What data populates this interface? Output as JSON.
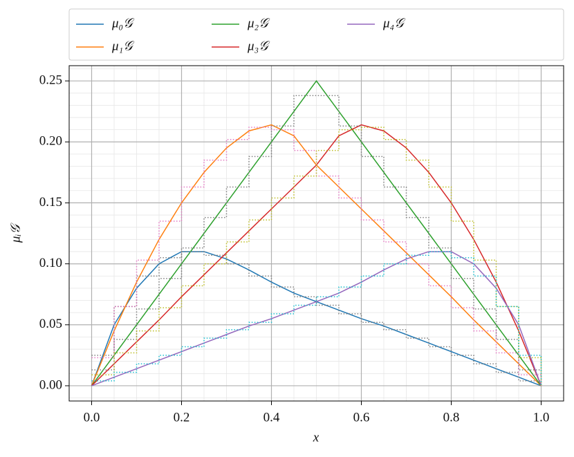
{
  "chart_data": {
    "type": "line",
    "xlabel": "x",
    "ylabel": "μᵢ𝒢",
    "x": [
      0,
      0.05,
      0.1,
      0.15,
      0.2,
      0.25,
      0.3,
      0.35,
      0.4,
      0.45,
      0.5,
      0.55,
      0.6,
      0.65,
      0.7,
      0.75,
      0.8,
      0.85,
      0.9,
      0.95,
      1
    ],
    "series": [
      {
        "name": "μ₀𝒢",
        "color": "#1f77b4",
        "style": "solid",
        "values": [
          0,
          0.05,
          0.08,
          0.1,
          0.11,
          0.11,
          0.104,
          0.095,
          0.085,
          0.076,
          0.069,
          0.062,
          0.055,
          0.049,
          0.042,
          0.035,
          0.028,
          0.021,
          0.014,
          0.007,
          0
        ]
      },
      {
        "name": "μ₁𝒢",
        "color": "#ff7f0e",
        "style": "solid",
        "values": [
          0,
          0.045,
          0.085,
          0.12,
          0.15,
          0.175,
          0.195,
          0.209,
          0.214,
          0.205,
          0.181,
          0.163,
          0.145,
          0.127,
          0.109,
          0.091,
          0.073,
          0.054,
          0.036,
          0.018,
          0
        ]
      },
      {
        "name": "μ₂𝒢",
        "color": "#2ca02c",
        "style": "solid",
        "values": [
          0,
          0.025,
          0.05,
          0.075,
          0.1,
          0.125,
          0.15,
          0.175,
          0.2,
          0.225,
          0.25,
          0.225,
          0.2,
          0.175,
          0.15,
          0.125,
          0.1,
          0.075,
          0.05,
          0.025,
          0
        ]
      },
      {
        "name": "μ₃𝒢",
        "color": "#d62728",
        "style": "solid",
        "values": [
          0,
          0.018,
          0.036,
          0.054,
          0.073,
          0.091,
          0.109,
          0.127,
          0.145,
          0.163,
          0.181,
          0.205,
          0.214,
          0.209,
          0.195,
          0.175,
          0.15,
          0.12,
          0.085,
          0.045,
          0
        ]
      },
      {
        "name": "μ₄𝒢",
        "color": "#9467bd",
        "style": "solid",
        "values": [
          0,
          0.007,
          0.014,
          0.021,
          0.028,
          0.035,
          0.042,
          0.049,
          0.055,
          0.062,
          0.069,
          0.076,
          0.085,
          0.095,
          0.104,
          0.11,
          0.11,
          0.1,
          0.08,
          0.05,
          0
        ]
      },
      {
        "color": "#7f7f7f",
        "style": "steps",
        "values": [
          0.025,
          0.065,
          0.09,
          0.105,
          0.11,
          0.107,
          0.1,
          0.09,
          0.081,
          0.073,
          0.066,
          0.059,
          0.052,
          0.046,
          0.039,
          0.032,
          0.025,
          0.018,
          0.011,
          0.004,
          0
        ]
      },
      {
        "color": "#e377c2",
        "style": "steps",
        "values": [
          0.023,
          0.065,
          0.103,
          0.135,
          0.163,
          0.185,
          0.202,
          0.212,
          0.21,
          0.193,
          0.172,
          0.154,
          0.136,
          0.118,
          0.1,
          0.082,
          0.064,
          0.045,
          0.027,
          0.009,
          0
        ]
      },
      {
        "color": "#7f7f7f",
        "style": "steps",
        "values": [
          0.013,
          0.038,
          0.063,
          0.088,
          0.113,
          0.138,
          0.163,
          0.188,
          0.213,
          0.238,
          0.238,
          0.213,
          0.188,
          0.163,
          0.138,
          0.113,
          0.088,
          0.063,
          0.038,
          0.013,
          0
        ]
      },
      {
        "color": "#bcbd22",
        "style": "steps",
        "values": [
          0.009,
          0.027,
          0.045,
          0.064,
          0.082,
          0.1,
          0.118,
          0.136,
          0.154,
          0.172,
          0.193,
          0.21,
          0.212,
          0.202,
          0.185,
          0.163,
          0.135,
          0.103,
          0.065,
          0.023,
          0
        ]
      },
      {
        "color": "#17becf",
        "style": "steps",
        "values": [
          0.004,
          0.011,
          0.018,
          0.025,
          0.032,
          0.039,
          0.046,
          0.052,
          0.059,
          0.066,
          0.073,
          0.081,
          0.09,
          0.1,
          0.107,
          0.11,
          0.105,
          0.09,
          0.065,
          0.025,
          0
        ]
      }
    ],
    "xlim": [
      -0.05,
      1.05
    ],
    "xticks": [
      {
        "value": 0,
        "label": "0.0"
      },
      {
        "value": 0.2,
        "label": "0.2"
      },
      {
        "value": 0.4,
        "label": "0.4"
      },
      {
        "value": 0.6,
        "label": "0.6"
      },
      {
        "value": 0.8,
        "label": "0.8"
      },
      {
        "value": 1,
        "label": "1.0"
      }
    ],
    "ylim": [
      -0.0125,
      0.2625
    ],
    "yticks": [
      {
        "value": 0,
        "label": "0.00"
      },
      {
        "value": 0.05,
        "label": "0.05"
      },
      {
        "value": 0.1,
        "label": "0.10"
      },
      {
        "value": 0.15,
        "label": "0.15"
      },
      {
        "value": 0.2,
        "label": "0.20"
      },
      {
        "value": 0.25,
        "label": "0.25"
      }
    ],
    "grid": true,
    "minor_grid": true,
    "legend": "top"
  }
}
